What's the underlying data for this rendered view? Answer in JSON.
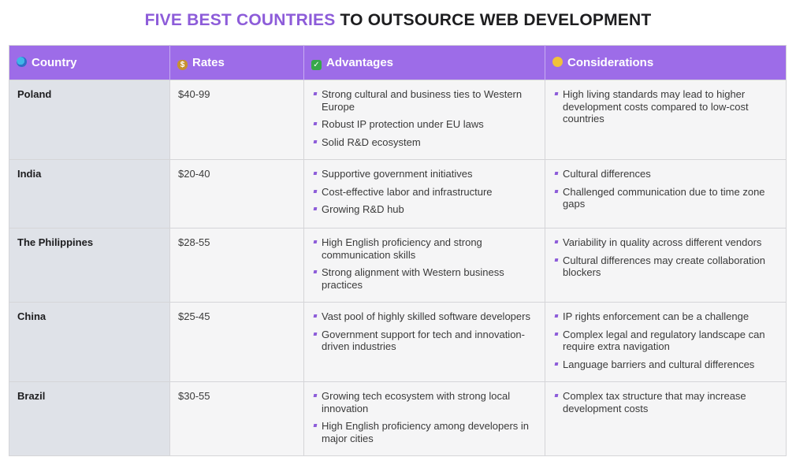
{
  "title": {
    "highlight": "FIVE BEST COUNTRIES",
    "rest": " TO OUTSOURCE WEB DEVELOPMENT"
  },
  "headers": {
    "country": "Country",
    "rates": "Rates",
    "advantages": "Advantages",
    "considerations": "Considerations"
  },
  "header_icons": [
    "globe-icon",
    "money-bag-icon",
    "check-mark-icon",
    "thinking-face-icon"
  ],
  "colors": {
    "accent": "#9d6ce8",
    "title_highlight": "#8d5cd9",
    "country_cell": "#dfe2e8"
  },
  "rows": [
    {
      "country": "Poland",
      "rate": "$40-99",
      "advantages": [
        "Strong cultural and business ties to Western Europe",
        "Robust IP protection under EU laws",
        "Solid R&D ecosystem"
      ],
      "considerations": [
        "High living standards may lead to higher development costs compared to low-cost countries"
      ]
    },
    {
      "country": "India",
      "rate": "$20-40",
      "advantages": [
        "Supportive government initiatives",
        "Cost-effective labor and infrastructure",
        "Growing R&D hub"
      ],
      "considerations": [
        "Cultural differences",
        "Challenged communication due to time zone gaps"
      ]
    },
    {
      "country": "The Philippines",
      "rate": "$28-55",
      "advantages": [
        "High English proficiency and strong communication skills",
        "Strong alignment with Western business practices"
      ],
      "considerations": [
        "Variability in quality across different vendors",
        "Cultural differences may create collaboration blockers"
      ]
    },
    {
      "country": "China",
      "rate": "$25-45",
      "advantages": [
        "Vast pool of highly skilled software developers",
        "Government support for tech and innovation-driven industries"
      ],
      "considerations": [
        "IP rights enforcement can be a challenge",
        "Complex legal and regulatory landscape can require extra navigation",
        "Language barriers and cultural differences"
      ]
    },
    {
      "country": "Brazil",
      "rate": "$30-55",
      "advantages": [
        "Growing tech ecosystem with strong local innovation",
        "High English proficiency among developers in major cities"
      ],
      "considerations": [
        "Complex tax structure that may increase development costs"
      ]
    }
  ]
}
